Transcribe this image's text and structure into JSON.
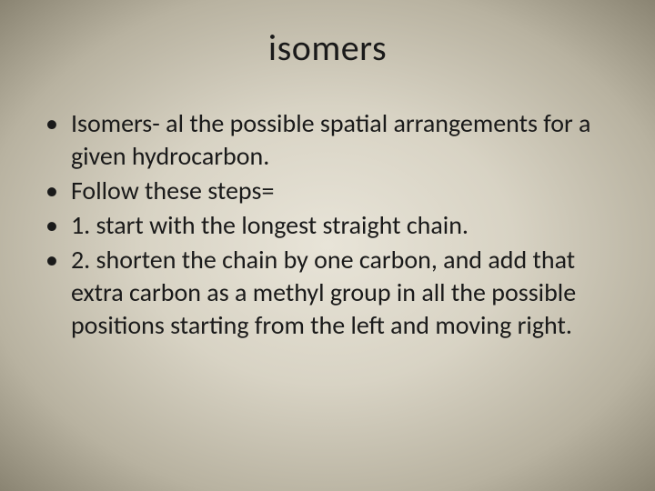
{
  "slide": {
    "title": "isomers",
    "bullets": [
      "Isomers- al the possible spatial arrangements for a given hydrocarbon.",
      "Follow these steps=",
      "1. start with the longest straight chain.",
      "2. shorten the chain by one carbon, and add that extra carbon as a methyl group in all the possible positions starting from the left and moving right."
    ],
    "style": {
      "title_fontsize": 40,
      "body_fontsize": 28,
      "line_height": 36,
      "text_color": "#1a1a1a",
      "bullet_char": "•",
      "background_gradient": {
        "type": "radial-ellipse-center",
        "stops": [
          {
            "color": "#e8e4d8",
            "at": 0
          },
          {
            "color": "#d8d3c4",
            "at": 40
          },
          {
            "color": "#b8b2a0",
            "at": 75
          },
          {
            "color": "#8a8472",
            "at": 100
          }
        ]
      },
      "font_family": "Calibri"
    }
  }
}
